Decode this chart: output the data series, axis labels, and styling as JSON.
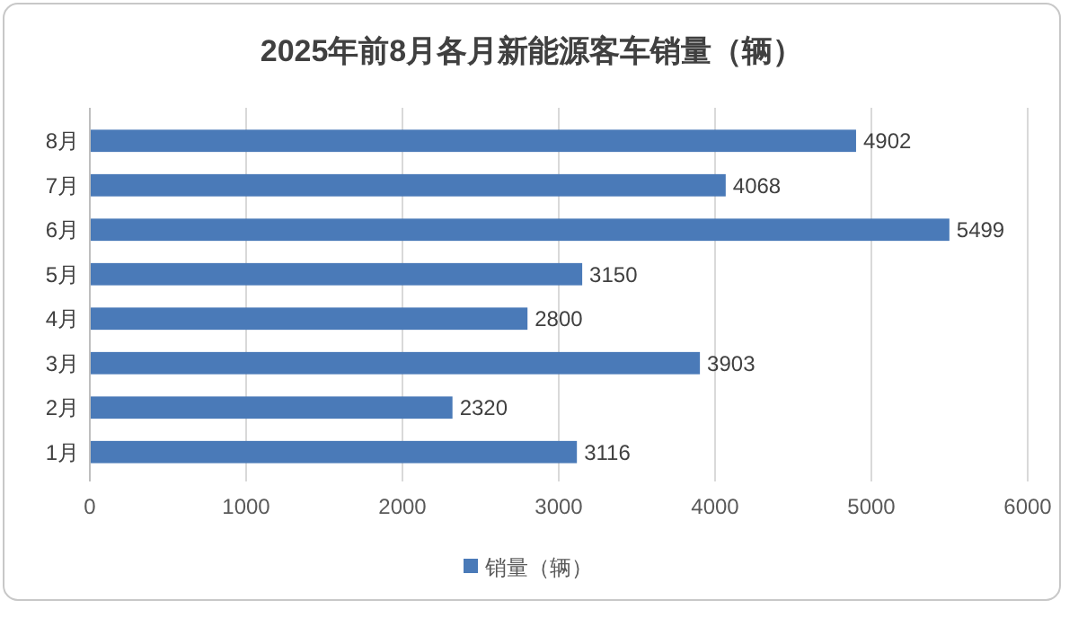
{
  "chart_data": {
    "type": "bar",
    "orientation": "horizontal",
    "title": "2025年前8月各月新能源客车销量（辆）",
    "categories": [
      "8月",
      "7月",
      "6月",
      "5月",
      "4月",
      "3月",
      "2月",
      "1月"
    ],
    "series": [
      {
        "name": "销量（辆）",
        "color": "#4a7ab8",
        "values": [
          4902,
          4068,
          5499,
          3150,
          2800,
          3903,
          2320,
          3116
        ]
      }
    ],
    "xlim": [
      0,
      6000
    ],
    "xticks": [
      0,
      1000,
      2000,
      3000,
      4000,
      5000,
      6000
    ],
    "grid": "x",
    "legend": "bottom",
    "data_labels": true
  }
}
